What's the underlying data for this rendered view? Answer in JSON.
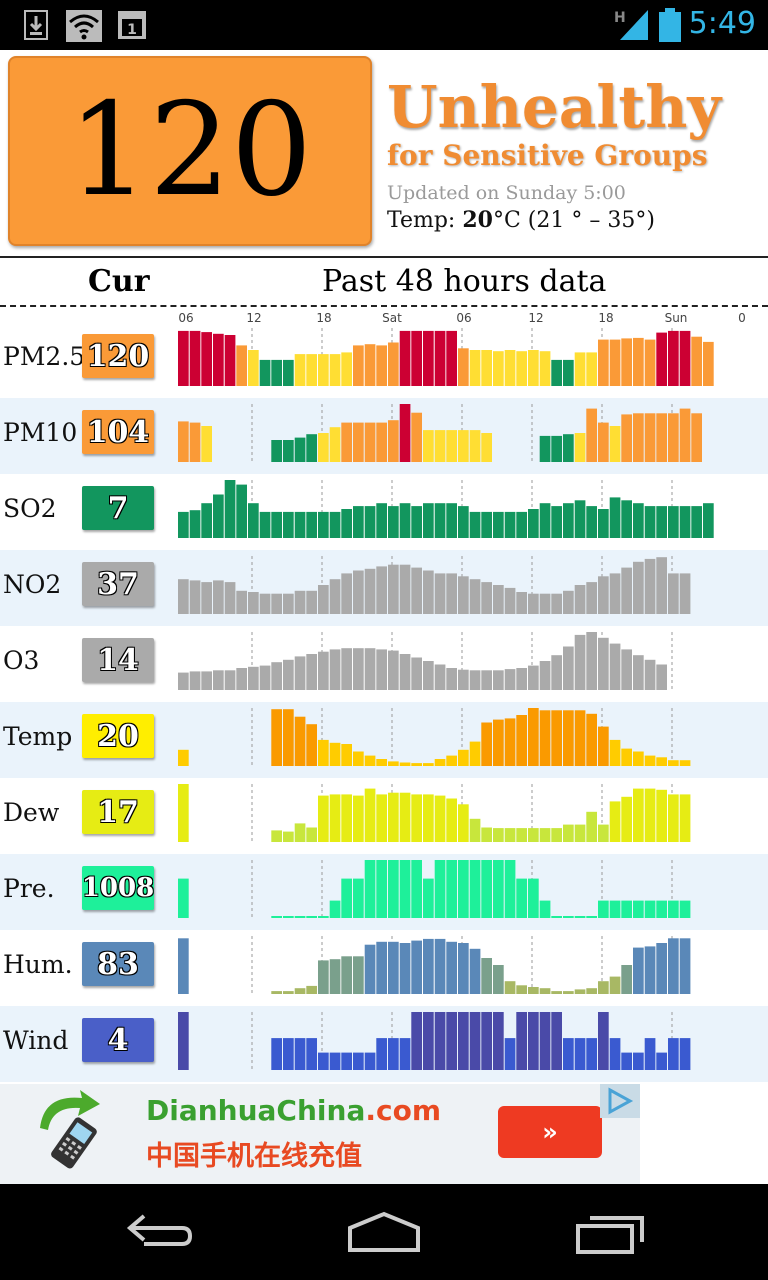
{
  "status_bar": {
    "time": "5:49",
    "network": "H"
  },
  "header": {
    "aqi_value": "120",
    "aqi_color": "#fa9a37",
    "level_title": "Unhealthy",
    "level_subtitle": "for Sensitive Groups",
    "updated": "Updated on Sunday 5:00",
    "temp_label": "Temp: ",
    "temp_value": "20",
    "temp_unit_range": "°C (21 ° – 35°)"
  },
  "columns": {
    "current": "Cur",
    "past": "Past 48 hours data"
  },
  "time_ticks": [
    "06",
    "12",
    "18",
    "Sat",
    "06",
    "12",
    "18",
    "Sun",
    "0"
  ],
  "rows": [
    {
      "label": "PM2.5",
      "value": "120",
      "badge_color": "#fa9a37"
    },
    {
      "label": "PM10",
      "value": "104",
      "badge_color": "#fa9a37"
    },
    {
      "label": "SO2",
      "value": "7",
      "badge_color": "#12965e"
    },
    {
      "label": "NO2",
      "value": "37",
      "badge_color": "#aaaaaa"
    },
    {
      "label": "O3",
      "value": "14",
      "badge_color": "#aaaaaa"
    },
    {
      "label": "Temp",
      "value": "20",
      "badge_color": "#ffee00"
    },
    {
      "label": "Dew",
      "value": "17",
      "badge_color": "#e6ec14"
    },
    {
      "label": "Pre.",
      "value": "1008",
      "badge_color": "#1ef09a"
    },
    {
      "label": "Hum.",
      "value": "83",
      "badge_color": "#5a88b8"
    },
    {
      "label": "Wind",
      "value": "4",
      "badge_color": "#4a5fc8"
    }
  ],
  "chart_data": [
    {
      "type": "bar",
      "name": "PM2.5",
      "values": [
        95,
        95,
        93,
        90,
        88,
        70,
        62,
        45,
        45,
        45,
        55,
        55,
        55,
        55,
        58,
        70,
        72,
        70,
        75,
        95,
        95,
        95,
        95,
        95,
        65,
        62,
        62,
        60,
        62,
        60,
        62,
        60,
        45,
        45,
        58,
        58,
        80,
        80,
        82,
        83,
        80,
        92,
        95,
        95,
        85,
        76,
        null,
        null
      ]
    },
    {
      "type": "bar",
      "name": "PM10",
      "values": [
        70,
        68,
        62,
        null,
        null,
        null,
        null,
        null,
        38,
        38,
        42,
        48,
        50,
        60,
        68,
        68,
        68,
        68,
        72,
        100,
        85,
        55,
        55,
        55,
        55,
        55,
        50,
        null,
        null,
        null,
        null,
        45,
        45,
        48,
        50,
        92,
        68,
        62,
        82,
        84,
        84,
        84,
        84,
        92,
        84,
        null,
        null
      ]
    },
    {
      "type": "bar",
      "name": "SO2",
      "values": [
        45,
        48,
        60,
        75,
        100,
        92,
        60,
        45,
        45,
        45,
        45,
        45,
        45,
        45,
        50,
        55,
        55,
        60,
        55,
        60,
        55,
        60,
        60,
        60,
        55,
        45,
        45,
        45,
        45,
        45,
        50,
        60,
        55,
        60,
        65,
        55,
        50,
        70,
        65,
        60,
        55,
        55,
        55,
        55,
        55,
        60
      ]
    },
    {
      "type": "bar",
      "name": "NO2",
      "values": [
        60,
        58,
        55,
        58,
        55,
        40,
        38,
        35,
        35,
        35,
        40,
        40,
        50,
        60,
        70,
        75,
        78,
        82,
        85,
        85,
        80,
        75,
        70,
        70,
        65,
        60,
        55,
        50,
        45,
        38,
        35,
        35,
        35,
        40,
        50,
        55,
        65,
        70,
        80,
        90,
        95,
        98,
        70,
        70
      ]
    },
    {
      "type": "bar",
      "name": "O3",
      "values": [
        30,
        32,
        32,
        34,
        34,
        38,
        40,
        42,
        48,
        52,
        58,
        62,
        66,
        70,
        72,
        72,
        72,
        70,
        68,
        62,
        56,
        50,
        44,
        38,
        35,
        34,
        34,
        34,
        36,
        38,
        42,
        50,
        60,
        75,
        95,
        100,
        90,
        80,
        70,
        60,
        52,
        44
      ]
    },
    {
      "type": "bar",
      "name": "Temp",
      "values": [
        28,
        null,
        null,
        null,
        null,
        null,
        null,
        null,
        98,
        98,
        85,
        72,
        45,
        40,
        38,
        25,
        18,
        12,
        8,
        6,
        5,
        5,
        12,
        18,
        28,
        42,
        75,
        80,
        82,
        88,
        100,
        96,
        96,
        96,
        96,
        90,
        68,
        45,
        30,
        25,
        18,
        15,
        10,
        10
      ]
    },
    {
      "type": "bar",
      "name": "Dew",
      "values": [
        100,
        null,
        null,
        null,
        null,
        null,
        null,
        null,
        20,
        18,
        32,
        25,
        80,
        82,
        82,
        80,
        92,
        82,
        85,
        85,
        82,
        82,
        80,
        75,
        65,
        40,
        25,
        24,
        24,
        24,
        24,
        24,
        24,
        30,
        30,
        52,
        30,
        70,
        78,
        92,
        92,
        90,
        82,
        82
      ]
    },
    {
      "type": "bar",
      "name": "Pre.",
      "values": [
        68,
        null,
        null,
        null,
        null,
        null,
        null,
        null,
        2,
        2,
        2,
        2,
        2,
        30,
        68,
        68,
        100,
        100,
        100,
        100,
        100,
        68,
        100,
        100,
        100,
        100,
        100,
        100,
        100,
        68,
        68,
        30,
        2,
        2,
        2,
        2,
        30,
        30,
        30,
        30,
        30,
        30,
        30,
        30
      ]
    },
    {
      "type": "bar",
      "name": "Hum.",
      "values": [
        96,
        null,
        null,
        null,
        null,
        null,
        null,
        null,
        5,
        5,
        10,
        14,
        58,
        60,
        65,
        65,
        85,
        90,
        90,
        88,
        92,
        95,
        95,
        90,
        88,
        78,
        62,
        50,
        22,
        15,
        12,
        10,
        5,
        5,
        8,
        10,
        22,
        30,
        50,
        80,
        82,
        88,
        96,
        96
      ]
    },
    {
      "type": "bar",
      "name": "Wind",
      "values": [
        100,
        null,
        null,
        null,
        null,
        null,
        null,
        null,
        55,
        55,
        55,
        55,
        30,
        30,
        30,
        30,
        30,
        55,
        55,
        55,
        100,
        100,
        100,
        100,
        100,
        100,
        100,
        100,
        55,
        100,
        100,
        100,
        100,
        55,
        55,
        55,
        100,
        55,
        30,
        30,
        55,
        30,
        55,
        55
      ]
    }
  ],
  "ad": {
    "brand_main": "DianhuaChina",
    "brand_tld": ".com",
    "subtitle": "中国手机在线充值",
    "button_label": "»"
  }
}
